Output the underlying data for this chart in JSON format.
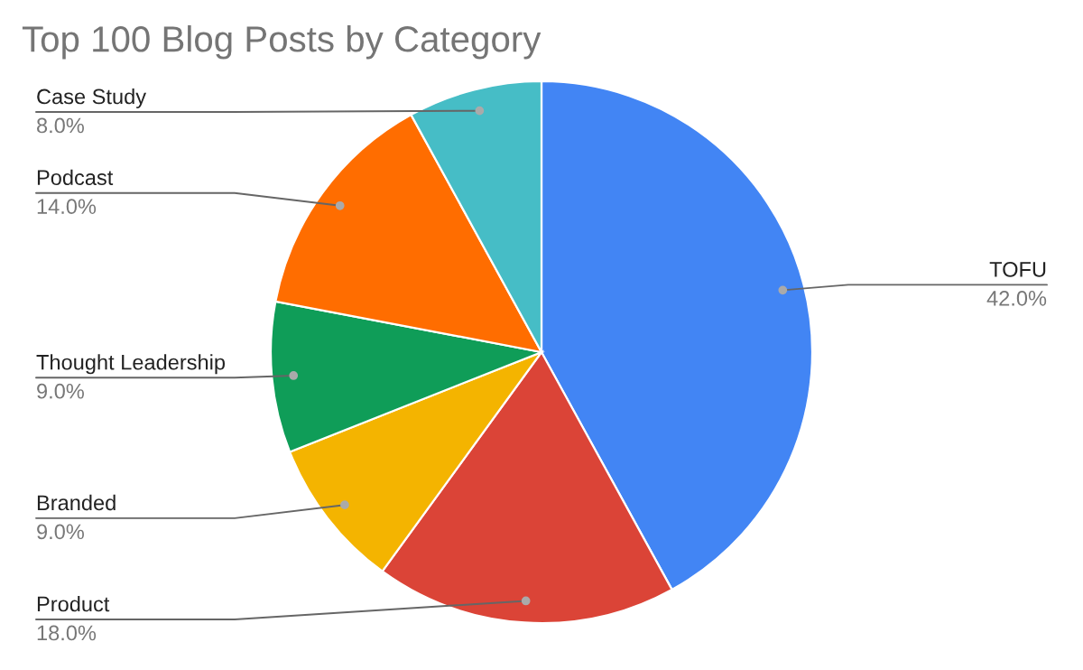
{
  "chart_data": {
    "type": "pie",
    "title": "Top 100 Blog Posts by Category",
    "categories": [
      "TOFU",
      "Product",
      "Branded",
      "Thought Leadership",
      "Podcast",
      "Case Study"
    ],
    "values": [
      42,
      18,
      9,
      9,
      14,
      8
    ],
    "colors": [
      "#4285f4",
      "#db4437",
      "#f4b400",
      "#0f9d58",
      "#ff6d00",
      "#46bdc6"
    ],
    "value_labels": [
      "42.0%",
      "18.0%",
      "9.0%",
      "9.0%",
      "14.0%",
      "8.0%"
    ],
    "legend": false
  }
}
